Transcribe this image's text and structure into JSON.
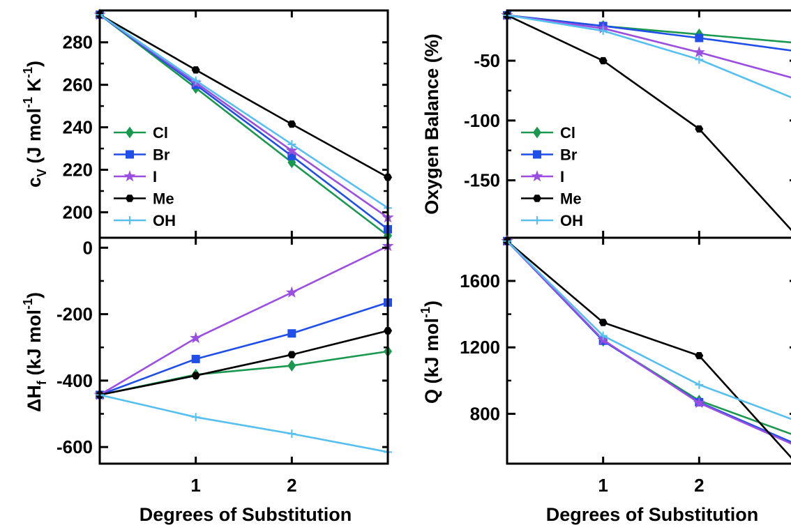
{
  "xlabel": "Degrees of Substitution",
  "colors": {
    "Cl": "#1a9850",
    "Br": "#1f4fe8",
    "I": "#9b4fe0",
    "Me": "#000000",
    "OH": "#55bff0"
  },
  "markers": {
    "Cl": "diamond",
    "Br": "square",
    "I": "star",
    "Me": "hexagon",
    "OH": "plus"
  },
  "legend": [
    "Cl",
    "Br",
    "I",
    "Me",
    "OH"
  ],
  "chart_data": [
    {
      "type": "line",
      "id": "cv",
      "ylabel_main": "c",
      "ylabel_sub": "V",
      "ylabel_tail": " (J mol",
      "ylabel_sup1": "-1",
      "ylabel_mid": " K",
      "ylabel_sup2": "-1",
      "ylabel_end": ")",
      "x": [
        0,
        1,
        2,
        3
      ],
      "xlim": [
        0,
        3
      ],
      "ylim": [
        188,
        295
      ],
      "xticks": [
        1,
        2
      ],
      "yticks": [
        200,
        220,
        240,
        260,
        280
      ],
      "legend_position": "left-middle",
      "series": [
        {
          "name": "Cl",
          "values": [
            293,
            258.5,
            223.5,
            189
          ]
        },
        {
          "name": "Br",
          "values": [
            293,
            260,
            226.5,
            192
          ]
        },
        {
          "name": "I",
          "values": [
            293,
            261,
            229,
            197.5
          ]
        },
        {
          "name": "Me",
          "values": [
            293,
            267,
            241.5,
            216.5
          ]
        },
        {
          "name": "OH",
          "values": [
            293,
            262,
            232,
            202
          ]
        }
      ]
    },
    {
      "type": "line",
      "id": "ob",
      "ylabel": "Oxygen Balance (%)",
      "x": [
        0,
        1,
        2,
        3
      ],
      "xlim": [
        0,
        3
      ],
      "ylim": [
        -198,
        -8
      ],
      "xticks": [
        1,
        2
      ],
      "yticks": [
        -50,
        -100,
        -150
      ],
      "legend_position": "left-bottom",
      "series": [
        {
          "name": "Cl",
          "values": [
            -12,
            -21,
            -28,
            -35
          ]
        },
        {
          "name": "Br",
          "values": [
            -12,
            -21,
            -31,
            -42
          ]
        },
        {
          "name": "I",
          "values": [
            -12,
            -23,
            -43,
            -65
          ]
        },
        {
          "name": "Me",
          "values": [
            -12,
            -50,
            -107,
            -195
          ]
        },
        {
          "name": "OH",
          "values": [
            -12,
            -25,
            -49,
            -82
          ]
        }
      ]
    },
    {
      "type": "line",
      "id": "hf",
      "ylabel_prefix": "ΔH",
      "ylabel_sub": "f",
      "ylabel_tail": " (kJ mol",
      "ylabel_sup": "-1",
      "ylabel_end": ")",
      "x": [
        0,
        1,
        2,
        3
      ],
      "xlim": [
        0,
        3
      ],
      "ylim": [
        -650,
        30
      ],
      "xticks": [
        1,
        2
      ],
      "yticks": [
        0,
        -200,
        -400,
        -600
      ],
      "series": [
        {
          "name": "Cl",
          "values": [
            -443,
            -382,
            -355,
            -312
          ]
        },
        {
          "name": "Br",
          "values": [
            -443,
            -335,
            -258,
            -165
          ]
        },
        {
          "name": "I",
          "values": [
            -443,
            -272,
            -135,
            5
          ]
        },
        {
          "name": "Me",
          "values": [
            -443,
            -385,
            -322,
            -250
          ]
        },
        {
          "name": "OH",
          "values": [
            -443,
            -510,
            -560,
            -615
          ]
        }
      ]
    },
    {
      "type": "line",
      "id": "q",
      "ylabel_main": "Q (kJ mol",
      "ylabel_sup": "-1",
      "ylabel_end": ")",
      "x": [
        0,
        1,
        2,
        3
      ],
      "xlim": [
        0,
        3
      ],
      "ylim": [
        500,
        1860
      ],
      "xticks": [
        1,
        2
      ],
      "yticks": [
        800,
        1200,
        1600
      ],
      "series": [
        {
          "name": "Cl",
          "values": [
            1840,
            1240,
            880,
            670
          ]
        },
        {
          "name": "Br",
          "values": [
            1840,
            1240,
            870,
            620
          ]
        },
        {
          "name": "I",
          "values": [
            1840,
            1245,
            865,
            610
          ]
        },
        {
          "name": "Me",
          "values": [
            1840,
            1350,
            1150,
            510
          ]
        },
        {
          "name": "OH",
          "values": [
            1840,
            1270,
            975,
            760
          ]
        }
      ]
    }
  ]
}
